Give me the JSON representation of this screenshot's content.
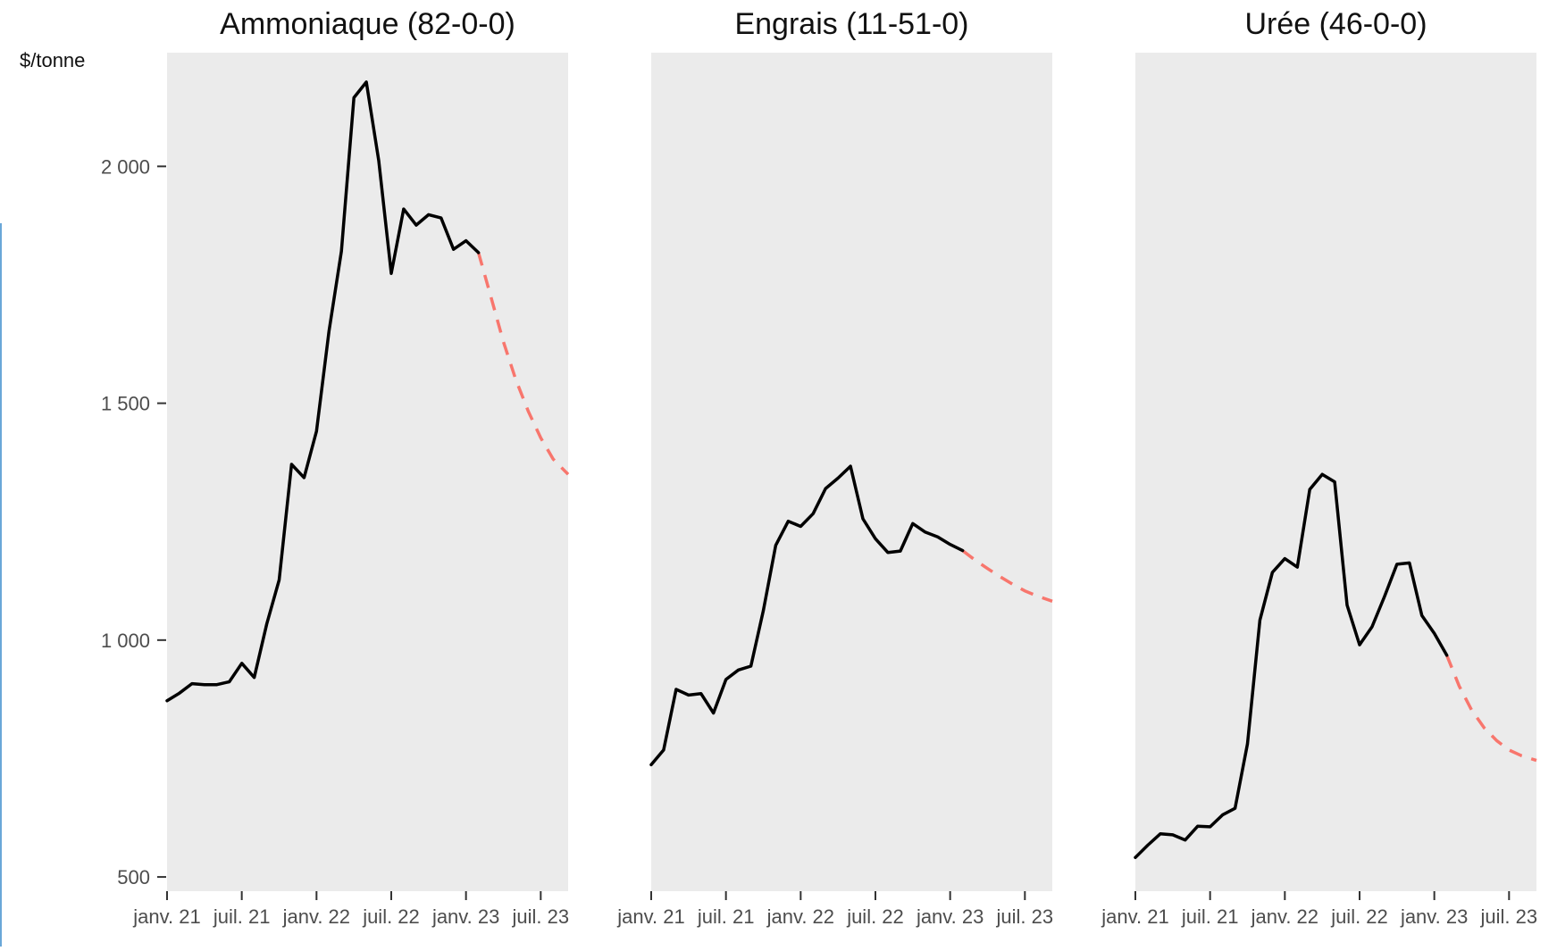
{
  "chart_data": {
    "type": "line",
    "y_unit_label": "$/tonne",
    "ylim": [
      470,
      2240
    ],
    "y_ticks": [
      500,
      1000,
      1500,
      2000
    ],
    "y_tick_labels": [
      "500",
      "1 000",
      "1 500",
      "2 000"
    ],
    "x_ticks": [
      0,
      6,
      12,
      18,
      24,
      30
    ],
    "x_tick_labels": [
      "janv. 21",
      "juil. 21",
      "janv. 22",
      "juil. 22",
      "janv. 23",
      "juil. 23"
    ],
    "xlim": [
      0,
      32.2
    ],
    "x_month_index_origin": "janv. 21",
    "colors": {
      "panel_bg": "#ebebeb",
      "history": "#000000",
      "forecast": "#f8766d"
    },
    "panels": [
      {
        "title": "Ammoniaque (82-0-0)",
        "history": {
          "x": [
            0,
            1,
            2,
            3,
            4,
            5,
            6,
            7,
            8,
            9,
            10,
            11,
            12,
            13,
            14,
            15,
            16,
            17,
            18,
            19,
            20,
            21,
            22,
            23,
            24,
            25
          ],
          "y": [
            872,
            888,
            908,
            906,
            906,
            912,
            951,
            921,
            1034,
            1127,
            1371,
            1343,
            1441,
            1652,
            1821,
            2145,
            2178,
            2012,
            1774,
            1910,
            1876,
            1898,
            1891,
            1825,
            1843,
            1818
          ]
        },
        "forecast": {
          "x": [
            25,
            26,
            27,
            28,
            29,
            30,
            31,
            32.2
          ],
          "y": [
            1818,
            1725,
            1630,
            1550,
            1483,
            1427,
            1382,
            1350
          ]
        }
      },
      {
        "title": "Engrais (11-51-0)",
        "history": {
          "x": [
            0,
            1,
            2,
            3,
            4,
            5,
            6,
            7,
            8,
            9,
            10,
            11,
            12,
            13,
            14,
            15,
            16,
            17,
            18,
            19,
            20,
            21,
            22,
            23,
            24,
            25
          ],
          "y": [
            737,
            768,
            896,
            884,
            887,
            846,
            917,
            937,
            945,
            1062,
            1200,
            1251,
            1240,
            1267,
            1320,
            1342,
            1367,
            1256,
            1214,
            1185,
            1188,
            1246,
            1228,
            1218,
            1202,
            1189
          ]
        },
        "forecast": {
          "x": [
            25,
            26,
            27,
            28,
            29,
            30,
            31,
            32.2
          ],
          "y": [
            1189,
            1169,
            1151,
            1134,
            1118,
            1104,
            1093,
            1082
          ]
        }
      },
      {
        "title": "Urée (46-0-0)",
        "history": {
          "x": [
            0,
            1,
            2,
            3,
            4,
            5,
            6,
            7,
            8,
            9,
            10,
            11,
            12,
            13,
            14,
            15,
            16,
            17,
            18,
            19,
            20,
            21,
            22,
            23,
            24,
            25
          ],
          "y": [
            541,
            567,
            591,
            589,
            578,
            607,
            606,
            631,
            645,
            781,
            1042,
            1143,
            1172,
            1154,
            1318,
            1350,
            1334,
            1074,
            990,
            1028,
            1092,
            1160,
            1163,
            1052,
            1014,
            968
          ]
        },
        "forecast": {
          "x": [
            25,
            26,
            27,
            28,
            29,
            30,
            31,
            32.2
          ],
          "y": [
            968,
            903,
            852,
            815,
            788,
            768,
            756,
            746
          ]
        }
      }
    ]
  }
}
